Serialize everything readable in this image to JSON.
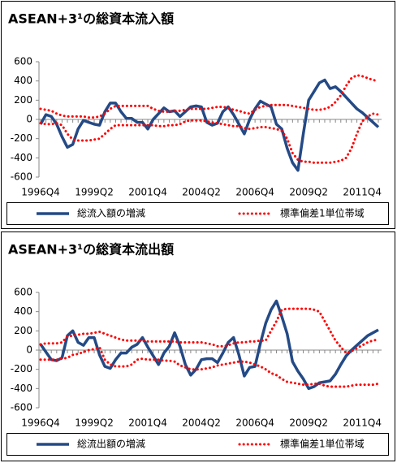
{
  "chart_data": [
    {
      "type": "line",
      "title": "ASEAN+3¹の総資本流入額",
      "categories": [
        "1996Q4",
        null,
        null,
        null,
        null,
        null,
        null,
        null,
        null,
        null,
        "1999Q2",
        null,
        null,
        null,
        null,
        null,
        null,
        null,
        null,
        null,
        "2001Q4",
        null,
        null,
        null,
        null,
        null,
        null,
        null,
        null,
        null,
        "2004Q2",
        null,
        null,
        null,
        null,
        null,
        null,
        null,
        null,
        null,
        "2006Q4",
        null,
        null,
        null,
        null,
        null,
        null,
        null,
        null,
        null,
        "2009Q2",
        null,
        null,
        null,
        null,
        null,
        null,
        null,
        null,
        null,
        "2011Q4",
        null,
        null,
        null
      ],
      "ylim": [
        -600,
        600
      ],
      "yticks": [
        -600,
        -400,
        -200,
        0,
        200,
        400,
        600
      ],
      "series": [
        {
          "name": "総流入額の増減",
          "color": "#244a86",
          "values": [
            -50,
            50,
            30,
            -50,
            -180,
            -290,
            -260,
            -100,
            -10,
            -30,
            -50,
            -60,
            80,
            170,
            170,
            80,
            10,
            10,
            -30,
            -30,
            -100,
            0,
            60,
            120,
            80,
            90,
            30,
            80,
            130,
            140,
            130,
            -30,
            -60,
            -40,
            80,
            130,
            50,
            -50,
            -150,
            0,
            110,
            190,
            160,
            130,
            -50,
            -100,
            -300,
            -450,
            -530,
            -150,
            200,
            290,
            380,
            410,
            320,
            340,
            290,
            230,
            170,
            110,
            70,
            20,
            -30,
            -80
          ]
        },
        {
          "name": "標準偏差1単位帯域",
          "color": "#ff0000",
          "style": "dotted",
          "values": [
            110,
            100,
            90,
            60,
            40,
            30,
            30,
            30,
            30,
            20,
            20,
            30,
            60,
            110,
            140,
            140,
            140,
            140,
            140,
            140,
            140,
            110,
            90,
            80,
            80,
            90,
            90,
            100,
            110,
            110,
            110,
            110,
            120,
            130,
            130,
            120,
            100,
            90,
            70,
            60,
            100,
            130,
            140,
            150,
            150,
            150,
            150,
            140,
            130,
            120,
            110,
            100,
            100,
            110,
            130,
            180,
            250,
            350,
            430,
            460,
            450,
            430,
            410,
            400
          ],
          "lower": [
            -40,
            -50,
            -50,
            -40,
            -60,
            -150,
            -210,
            -220,
            -220,
            -220,
            -210,
            -200,
            -150,
            -100,
            -60,
            -60,
            -60,
            -60,
            -60,
            -60,
            -60,
            -60,
            -70,
            -70,
            -60,
            -60,
            -50,
            -20,
            -10,
            -10,
            -10,
            -20,
            -30,
            -40,
            -50,
            -60,
            -70,
            -70,
            -90,
            -100,
            -90,
            -80,
            -80,
            -90,
            -100,
            -120,
            -200,
            -350,
            -420,
            -440,
            -440,
            -450,
            -450,
            -450,
            -450,
            -440,
            -430,
            -400,
            -300,
            -150,
            -20,
            30,
            60,
            50
          ]
        }
      ]
    },
    {
      "type": "line",
      "title": "ASEAN+3¹の総資本流出額",
      "categories": [
        "1996Q4",
        null,
        null,
        null,
        null,
        null,
        null,
        null,
        null,
        null,
        "1999Q2",
        null,
        null,
        null,
        null,
        null,
        null,
        null,
        null,
        null,
        "2001Q4",
        null,
        null,
        null,
        null,
        null,
        null,
        null,
        null,
        null,
        "2004Q2",
        null,
        null,
        null,
        null,
        null,
        null,
        null,
        null,
        null,
        "2006Q4",
        null,
        null,
        null,
        null,
        null,
        null,
        null,
        null,
        null,
        "2009Q2",
        null,
        null,
        null,
        null,
        null,
        null,
        null,
        null,
        null,
        "2011Q4",
        null,
        null,
        null
      ],
      "ylim": [
        -600,
        600
      ],
      "yticks": [
        -600,
        -400,
        -200,
        0,
        200,
        400,
        600
      ],
      "series": [
        {
          "name": "総流出額の増減",
          "color": "#244a86",
          "values": [
            60,
            -20,
            -100,
            -110,
            -80,
            150,
            200,
            80,
            50,
            130,
            130,
            -50,
            -170,
            -190,
            -100,
            -30,
            -30,
            30,
            60,
            130,
            30,
            -60,
            -150,
            -30,
            40,
            180,
            40,
            -150,
            -260,
            -200,
            -100,
            -90,
            -90,
            -130,
            -30,
            80,
            130,
            -50,
            -270,
            -180,
            -170,
            70,
            280,
            420,
            510,
            350,
            170,
            -120,
            -220,
            -300,
            -400,
            -380,
            -340,
            -330,
            -320,
            -250,
            -150,
            -60,
            0,
            50,
            100,
            150,
            180,
            210
          ]
        },
        {
          "name": "標準偏差1単位帯域",
          "color": "#ff0000",
          "style": "dotted",
          "values": [
            60,
            70,
            70,
            70,
            80,
            140,
            150,
            160,
            170,
            170,
            180,
            190,
            170,
            150,
            130,
            110,
            100,
            100,
            100,
            100,
            90,
            90,
            90,
            90,
            90,
            90,
            80,
            80,
            80,
            80,
            80,
            70,
            60,
            40,
            40,
            50,
            70,
            80,
            80,
            90,
            90,
            100,
            100,
            200,
            300,
            420,
            430,
            430,
            430,
            430,
            430,
            420,
            400,
            300,
            200,
            100,
            30,
            -30,
            -10,
            20,
            50,
            80,
            100,
            110
          ],
          "lower": [
            -100,
            -100,
            -100,
            -100,
            -90,
            -80,
            -50,
            -40,
            -20,
            0,
            10,
            30,
            -100,
            -150,
            -170,
            -170,
            -170,
            -150,
            -100,
            -90,
            -100,
            -100,
            -100,
            -110,
            -110,
            -120,
            -160,
            -180,
            -200,
            -200,
            -200,
            -190,
            -180,
            -160,
            -150,
            -140,
            -130,
            -120,
            -120,
            -130,
            -150,
            -170,
            -200,
            -240,
            -260,
            -300,
            -330,
            -340,
            -350,
            -360,
            -360,
            -350,
            -350,
            -370,
            -380,
            -380,
            -380,
            -380,
            -370,
            -360,
            -360,
            -360,
            -360,
            -350
          ]
        }
      ]
    }
  ]
}
